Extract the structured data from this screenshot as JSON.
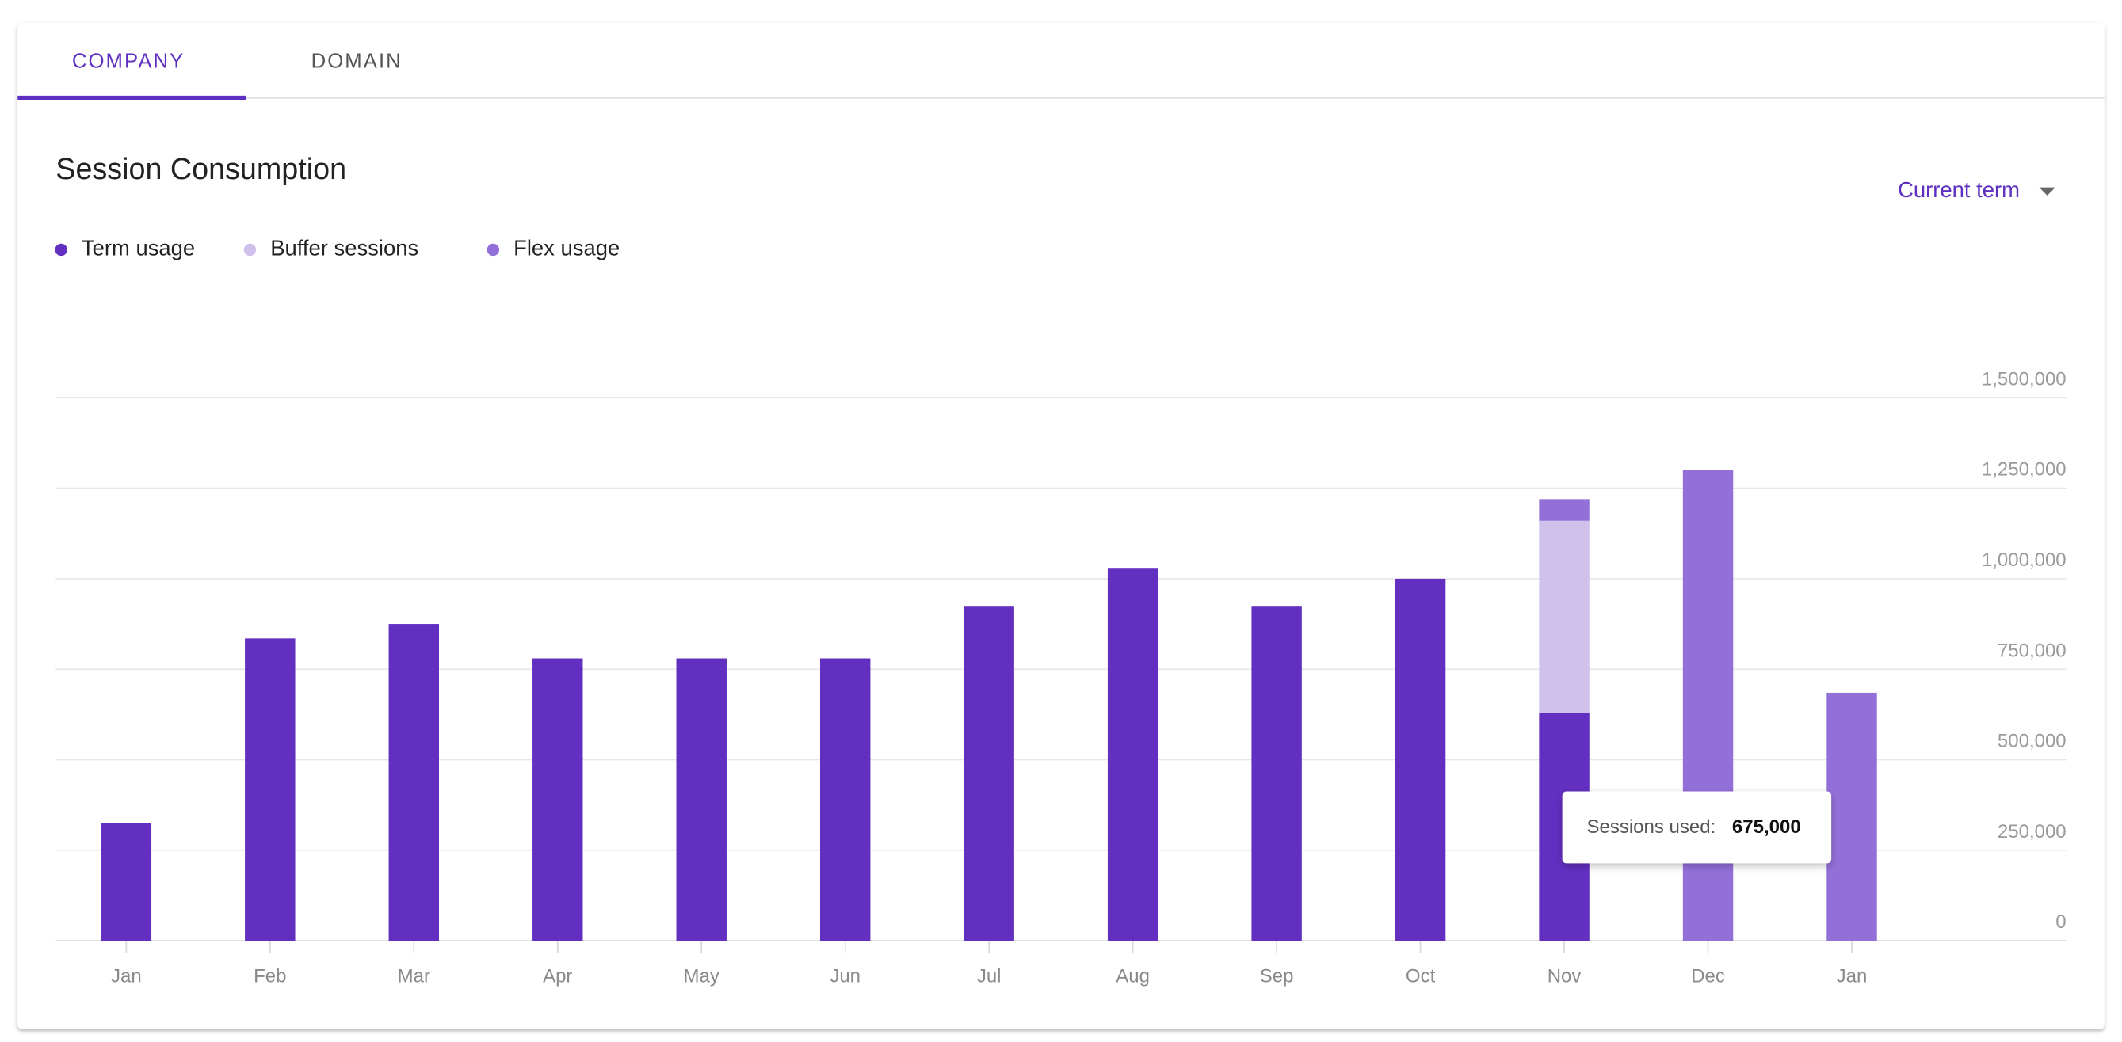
{
  "tabs": [
    "COMPANY",
    "DOMAIN"
  ],
  "dropdown": "Current term",
  "tooltip": {
    "label": "Sessions used:",
    "value": "675,000"
  },
  "chart_data": {
    "type": "stacked-bar",
    "title": "Session Consumption",
    "categories": [
      "Jan",
      "Feb",
      "Mar",
      "Apr",
      "May",
      "Jun",
      "Jul",
      "Aug",
      "Sep",
      "Oct",
      "Nov",
      "Dec",
      "Jan"
    ],
    "series": [
      {
        "name": "Term usage",
        "color": "#632fc1",
        "values": [
          325000,
          835000,
          875000,
          780000,
          780000,
          780000,
          925000,
          1030000,
          925000,
          1000000,
          630000,
          null,
          null
        ]
      },
      {
        "name": "Buffer sessions",
        "color": "#d0c1ec",
        "values": [
          null,
          null,
          null,
          null,
          null,
          null,
          null,
          null,
          null,
          null,
          530000,
          null,
          null
        ]
      },
      {
        "name": "Flex usage",
        "color": "#9370d8",
        "values": [
          null,
          null,
          null,
          null,
          null,
          null,
          null,
          null,
          null,
          null,
          60000,
          1300000,
          685000
        ]
      }
    ],
    "ylim": [
      0,
      1500000
    ],
    "yticks": [
      0,
      {
        "value": 250000,
        "label": "250,000"
      },
      {
        "value": 500000,
        "label": "500,000"
      },
      {
        "value": 750000,
        "label": "750,000"
      },
      {
        "value": 1000000,
        "label": "1,000,000"
      },
      {
        "value": 1250000,
        "label": "1,250,000"
      },
      {
        "value": 1500000,
        "label": "1,500,000"
      }
    ],
    "grid": true
  }
}
